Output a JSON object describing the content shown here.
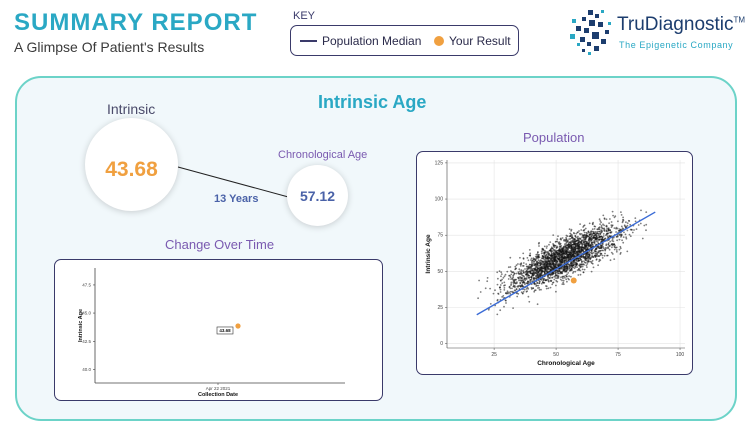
{
  "header": {
    "title": "SUMMARY REPORT",
    "subtitle": "A Glimpse Of Patient's Results"
  },
  "key": {
    "label": "KEY",
    "median_label": "Population Median",
    "result_label": "Your Result"
  },
  "logo": {
    "brand": "TruDiagnostic",
    "tm": "TM",
    "tagline": "The Epigenetic Company"
  },
  "colors": {
    "accent": "#2aa8c4",
    "result": "#f0a040",
    "median_line": "#3a6bd6",
    "panel_border": "#6cd3c8",
    "purple": "#7a5ab0",
    "navy": "#3a3a6a"
  },
  "section": {
    "title": "Intrinsic Age",
    "intrinsic_label": "Intrinsic",
    "intrinsic_value": "43.68",
    "chrono_label": "Chronological Age",
    "chrono_value": "57.12",
    "gap": "13 Years"
  },
  "chart_data": [
    {
      "type": "scatter",
      "title": "Change Over Time",
      "xlabel": "Collection Date",
      "ylabel": "Intrinsic Age",
      "x_ticks": [
        "Apr 22 2021"
      ],
      "y_ticks": [
        40.0,
        42.5,
        45.0,
        47.5
      ],
      "ylim": [
        38.8,
        49.0
      ],
      "points": [
        {
          "x": "Apr 22 2021",
          "y": 43.68,
          "label": "43.68"
        }
      ]
    },
    {
      "type": "scatter",
      "title": "Population",
      "xlabel": "Chronological Age",
      "ylabel": "Intrinsic Age",
      "x_ticks": [
        25,
        50,
        75,
        100
      ],
      "y_ticks": [
        0,
        25,
        50,
        75,
        100,
        125
      ],
      "xlim": [
        6,
        102
      ],
      "ylim": [
        -3,
        127
      ],
      "grid": true,
      "population_cloud": {
        "count": 2600,
        "age_range": [
          17,
          90
        ],
        "trend": {
          "intercept": 17,
          "slope": 0.8
        },
        "spread_sd": 9.5,
        "seed": 7
      },
      "median_line": {
        "x": [
          18,
          90
        ],
        "y": [
          20,
          91
        ]
      },
      "result_point": {
        "x": 57.12,
        "y": 43.68
      }
    }
  ]
}
